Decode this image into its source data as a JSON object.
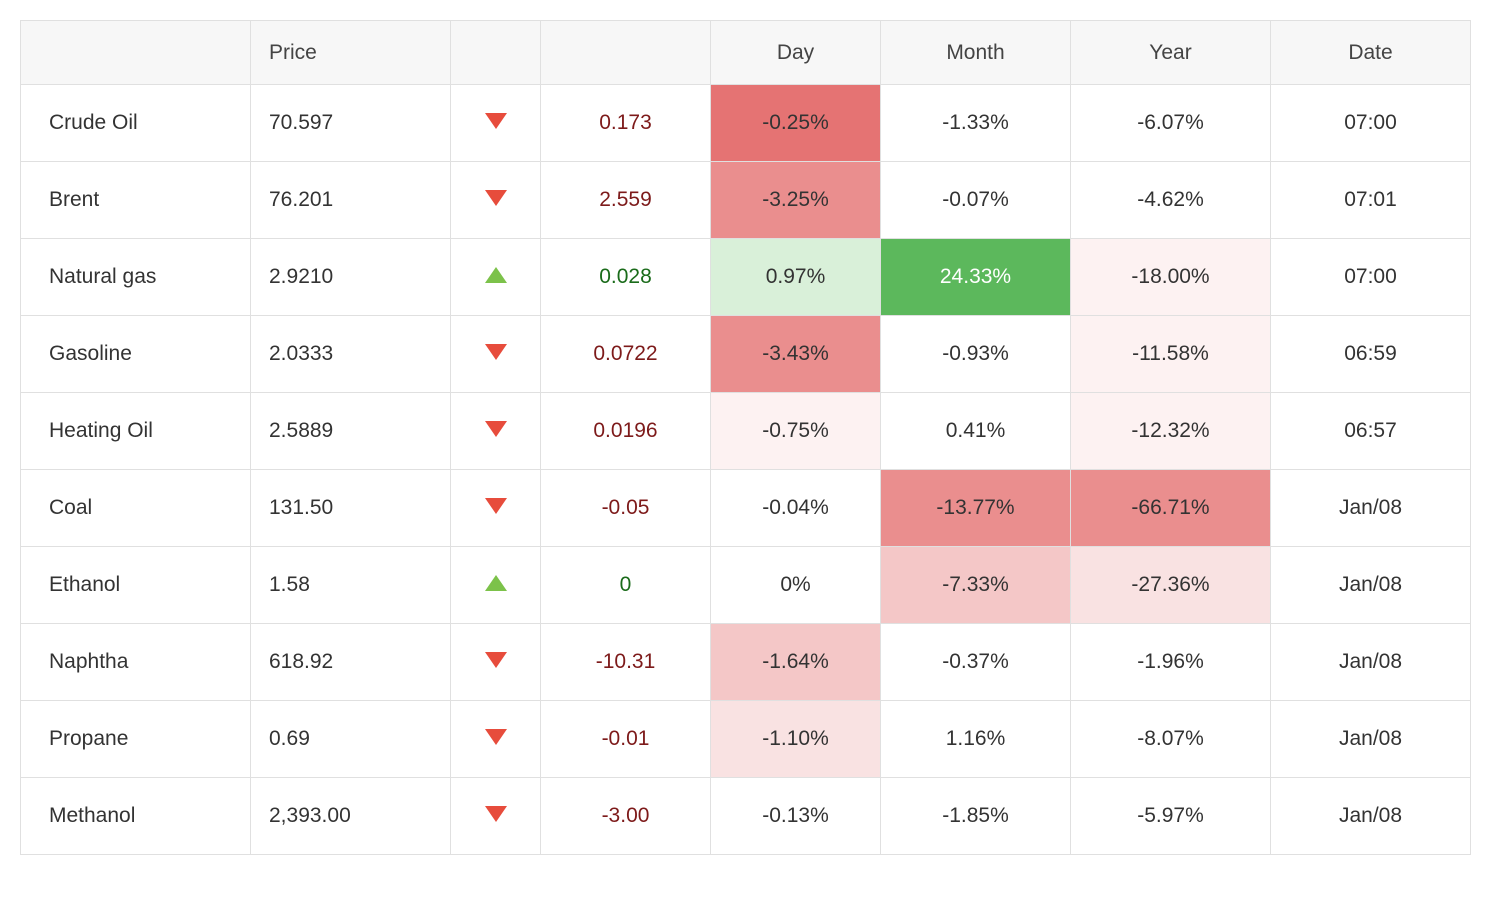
{
  "table": {
    "headers": {
      "name": "",
      "price": "Price",
      "arrow": "",
      "change": "",
      "day": "Day",
      "month": "Month",
      "year": "Year",
      "date": "Date"
    },
    "heatmap_colors": {
      "red5": "#e57373",
      "red4": "#ea8e8e",
      "red3": "#efabab",
      "red2": "#f4c7c7",
      "red1": "#f9e2e2",
      "red0": "#fdf2f2",
      "green3": "#5cb85c",
      "green1": "#d9f0d9"
    },
    "arrow_colors": {
      "down": "#e74c3c",
      "up": "#7cc24a"
    },
    "change_text_colors": {
      "down": "#7d1a1a",
      "up": "#1a6b1a",
      "flat": "#333333"
    },
    "rows": [
      {
        "name": "Crude Oil",
        "price": "70.597",
        "direction": "down",
        "change": "0.173",
        "day": {
          "text": "-0.25%",
          "bg": "bg-red5"
        },
        "month": {
          "text": "-1.33%",
          "bg": ""
        },
        "year": {
          "text": "-6.07%",
          "bg": ""
        },
        "date": "07:00"
      },
      {
        "name": "Brent",
        "price": "76.201",
        "direction": "down",
        "change": "2.559",
        "day": {
          "text": "-3.25%",
          "bg": "bg-red4"
        },
        "month": {
          "text": "-0.07%",
          "bg": ""
        },
        "year": {
          "text": "-4.62%",
          "bg": ""
        },
        "date": "07:01"
      },
      {
        "name": "Natural gas",
        "price": "2.9210",
        "direction": "up",
        "change": "0.028",
        "day": {
          "text": "0.97%",
          "bg": "bg-grn1"
        },
        "month": {
          "text": "24.33%",
          "bg": "bg-grn3"
        },
        "year": {
          "text": "-18.00%",
          "bg": "bg-red0"
        },
        "date": "07:00"
      },
      {
        "name": "Gasoline",
        "price": "2.0333",
        "direction": "down",
        "change": "0.0722",
        "day": {
          "text": "-3.43%",
          "bg": "bg-red4"
        },
        "month": {
          "text": "-0.93%",
          "bg": ""
        },
        "year": {
          "text": "-11.58%",
          "bg": "bg-red0"
        },
        "date": "06:59"
      },
      {
        "name": "Heating Oil",
        "price": "2.5889",
        "direction": "down",
        "change": "0.0196",
        "day": {
          "text": "-0.75%",
          "bg": "bg-red0"
        },
        "month": {
          "text": "0.41%",
          "bg": ""
        },
        "year": {
          "text": "-12.32%",
          "bg": "bg-red0"
        },
        "date": "06:57"
      },
      {
        "name": "Coal",
        "price": "131.50",
        "direction": "down",
        "change": "-0.05",
        "day": {
          "text": "-0.04%",
          "bg": ""
        },
        "month": {
          "text": "-13.77%",
          "bg": "bg-red4"
        },
        "year": {
          "text": "-66.71%",
          "bg": "bg-red4"
        },
        "date": "Jan/08"
      },
      {
        "name": "Ethanol",
        "price": "1.58",
        "direction": "up",
        "change": "0",
        "day": {
          "text": "0%",
          "bg": ""
        },
        "month": {
          "text": "-7.33%",
          "bg": "bg-red2"
        },
        "year": {
          "text": "-27.36%",
          "bg": "bg-red1"
        },
        "date": "Jan/08"
      },
      {
        "name": "Naphtha",
        "price": "618.92",
        "direction": "down",
        "change": "-10.31",
        "day": {
          "text": "-1.64%",
          "bg": "bg-red2"
        },
        "month": {
          "text": "-0.37%",
          "bg": ""
        },
        "year": {
          "text": "-1.96%",
          "bg": ""
        },
        "date": "Jan/08"
      },
      {
        "name": "Propane",
        "price": "0.69",
        "direction": "down",
        "change": "-0.01",
        "day": {
          "text": "-1.10%",
          "bg": "bg-red1"
        },
        "month": {
          "text": "1.16%",
          "bg": ""
        },
        "year": {
          "text": "-8.07%",
          "bg": ""
        },
        "date": "Jan/08"
      },
      {
        "name": "Methanol",
        "price": "2,393.00",
        "direction": "down",
        "change": "-3.00",
        "day": {
          "text": "-0.13%",
          "bg": ""
        },
        "month": {
          "text": "-1.85%",
          "bg": ""
        },
        "year": {
          "text": "-5.97%",
          "bg": ""
        },
        "date": "Jan/08"
      }
    ]
  }
}
